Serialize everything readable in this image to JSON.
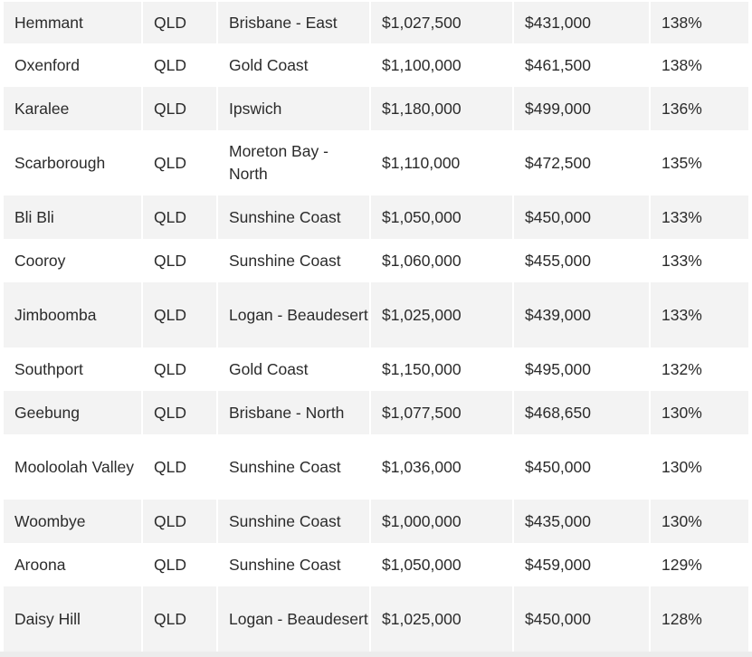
{
  "table": {
    "rows": [
      {
        "suburb": "Hemmant",
        "state": "QLD",
        "region": "Brisbane - East",
        "house_price": "$1,027,500",
        "unit_price": "$431,000",
        "gap": "138%"
      },
      {
        "suburb": "Oxenford",
        "state": "QLD",
        "region": "Gold Coast",
        "house_price": "$1,100,000",
        "unit_price": "$461,500",
        "gap": "138%"
      },
      {
        "suburb": "Karalee",
        "state": "QLD",
        "region": "Ipswich",
        "house_price": "$1,180,000",
        "unit_price": "$499,000",
        "gap": "136%"
      },
      {
        "suburb": "Scarborough",
        "state": "QLD",
        "region": "Moreton Bay - North",
        "house_price": "$1,110,000",
        "unit_price": "$472,500",
        "gap": "135%"
      },
      {
        "suburb": "Bli Bli",
        "state": "QLD",
        "region": "Sunshine Coast",
        "house_price": "$1,050,000",
        "unit_price": "$450,000",
        "gap": "133%"
      },
      {
        "suburb": "Cooroy",
        "state": "QLD",
        "region": "Sunshine Coast",
        "house_price": "$1,060,000",
        "unit_price": "$455,000",
        "gap": "133%"
      },
      {
        "suburb": "Jimboomba",
        "state": "QLD",
        "region": "Logan - Beaudesert",
        "house_price": "$1,025,000",
        "unit_price": "$439,000",
        "gap": "133%"
      },
      {
        "suburb": "Southport",
        "state": "QLD",
        "region": "Gold Coast",
        "house_price": "$1,150,000",
        "unit_price": "$495,000",
        "gap": "132%"
      },
      {
        "suburb": "Geebung",
        "state": "QLD",
        "region": "Brisbane - North",
        "house_price": "$1,077,500",
        "unit_price": "$468,650",
        "gap": "130%"
      },
      {
        "suburb": "Mooloolah Valley",
        "state": "QLD",
        "region": "Sunshine Coast",
        "house_price": "$1,036,000",
        "unit_price": "$450,000",
        "gap": "130%"
      },
      {
        "suburb": "Woombye",
        "state": "QLD",
        "region": "Sunshine Coast",
        "house_price": "$1,000,000",
        "unit_price": "$435,000",
        "gap": "130%"
      },
      {
        "suburb": "Aroona",
        "state": "QLD",
        "region": "Sunshine Coast",
        "house_price": "$1,050,000",
        "unit_price": "$459,000",
        "gap": "129%"
      },
      {
        "suburb": "Daisy Hill",
        "state": "QLD",
        "region": "Logan - Beaudesert",
        "house_price": "$1,025,000",
        "unit_price": "$450,000",
        "gap": "128%"
      }
    ]
  },
  "colors": {
    "stripe": "#f3f3f3",
    "text": "#2b2b2b"
  }
}
